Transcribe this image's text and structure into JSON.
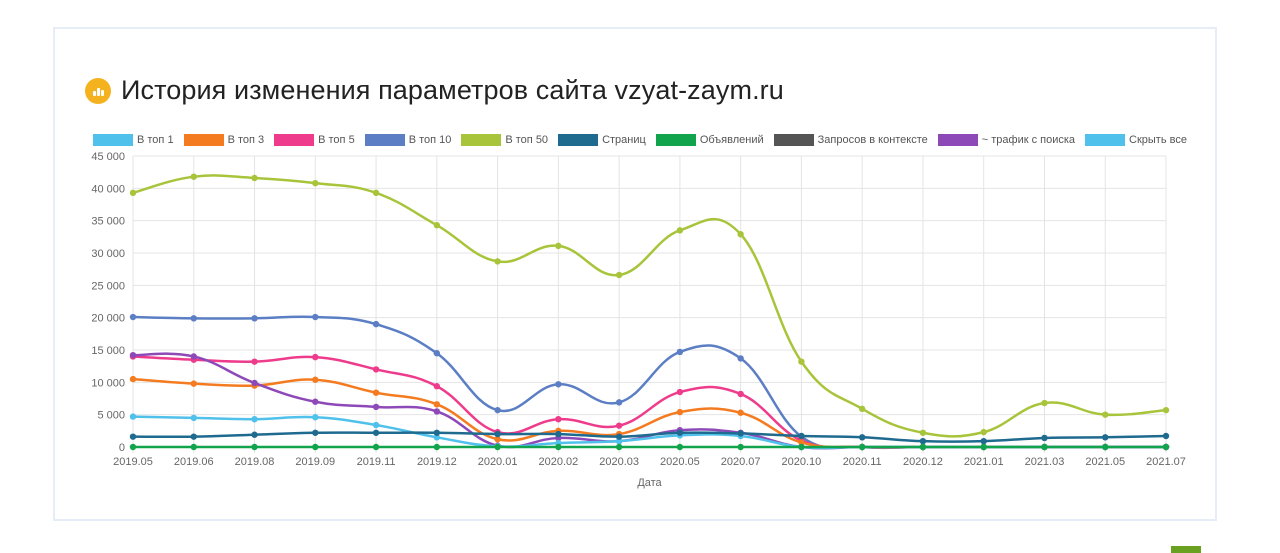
{
  "title": "История изменения параметров сайта vzyat-zaym.ru",
  "title_icon": "bar-chart-icon",
  "colors": {
    "title_icon": "#f5b21f",
    "corner": "#6aa121"
  },
  "legend": [
    {
      "label": "В топ 1",
      "color": "#4fc1ea"
    },
    {
      "label": "В топ 3",
      "color": "#f47b20"
    },
    {
      "label": "В топ 5",
      "color": "#ee3b8b"
    },
    {
      "label": "В топ 10",
      "color": "#5b7ec4"
    },
    {
      "label": "В топ 50",
      "color": "#a8c43a"
    },
    {
      "label": "Страниц",
      "color": "#1f6a8f"
    },
    {
      "label": "Объявлений",
      "color": "#12a44c"
    },
    {
      "label": "Запросов в контексте",
      "color": "#555555"
    },
    {
      "label": "~ трафик с поиска",
      "color": "#8e49b8"
    },
    {
      "label": "Скрыть все",
      "color": "#4fc1ea"
    }
  ],
  "chart_data": {
    "type": "line",
    "title": "История изменения параметров сайта vzyat-zaym.ru",
    "xlabel": "Дата",
    "ylabel": "",
    "ylim": [
      0,
      45000
    ],
    "y_ticks": [
      0,
      5000,
      10000,
      15000,
      20000,
      25000,
      30000,
      35000,
      40000,
      45000
    ],
    "y_tick_labels": [
      "0",
      "5 000",
      "10 000",
      "15 000",
      "20 000",
      "25 000",
      "30 000",
      "35 000",
      "40 000",
      "45 000"
    ],
    "grid": true,
    "legend_position": "top",
    "categories": [
      "2019.05",
      "2019.06",
      "2019.08",
      "2019.09",
      "2019.11",
      "2019.12",
      "2020.01",
      "2020.02",
      "2020.03",
      "2020.05",
      "2020.07",
      "2020.10",
      "2020.11",
      "2020.12",
      "2021.01",
      "2021.03",
      "2021.05",
      "2021.07"
    ],
    "series": [
      {
        "name": "В топ 50",
        "color": "#a8c43a",
        "values": [
          39300,
          41800,
          41600,
          40800,
          39300,
          34300,
          28700,
          31100,
          26600,
          33500,
          32900,
          13200,
          5900,
          2200,
          2300,
          6800,
          5000,
          5700
        ]
      },
      {
        "name": "В топ 10",
        "color": "#5b7ec4",
        "values": [
          20100,
          19900,
          19900,
          20100,
          19000,
          14500,
          5700,
          9700,
          6900,
          14700,
          13700,
          1600,
          0,
          0,
          0,
          0,
          0,
          0
        ]
      },
      {
        "name": "В топ 5",
        "color": "#ee3b8b",
        "values": [
          14000,
          13500,
          13200,
          13900,
          12000,
          9400,
          2300,
          4300,
          3300,
          8500,
          8200,
          1000,
          0,
          0,
          0,
          0,
          0,
          0
        ]
      },
      {
        "name": "В топ 3",
        "color": "#f47b20",
        "values": [
          10500,
          9800,
          9500,
          10400,
          8400,
          6600,
          1200,
          2500,
          2000,
          5400,
          5300,
          700,
          0,
          0,
          0,
          0,
          0,
          0
        ]
      },
      {
        "name": "~ трафик с поиска",
        "color": "#8e49b8",
        "values": [
          14200,
          14000,
          9900,
          7000,
          6200,
          5500,
          200,
          1400,
          900,
          2600,
          2200,
          0,
          0,
          0,
          0,
          0,
          0,
          0
        ]
      },
      {
        "name": "В топ 1",
        "color": "#4fc1ea",
        "values": [
          4700,
          4500,
          4300,
          4600,
          3400,
          1500,
          100,
          600,
          900,
          1800,
          1700,
          0,
          0,
          0,
          0,
          0,
          0,
          0
        ]
      },
      {
        "name": "Страниц",
        "color": "#1f6a8f",
        "values": [
          1600,
          1600,
          1900,
          2200,
          2200,
          2200,
          2000,
          2000,
          1600,
          2200,
          2100,
          1700,
          1500,
          900,
          900,
          1400,
          1500,
          1700
        ]
      },
      {
        "name": "Объявлений",
        "color": "#12a44c",
        "values": [
          0,
          0,
          0,
          0,
          0,
          0,
          0,
          0,
          0,
          0,
          0,
          0,
          0,
          0,
          0,
          0,
          0,
          0
        ]
      }
    ]
  }
}
